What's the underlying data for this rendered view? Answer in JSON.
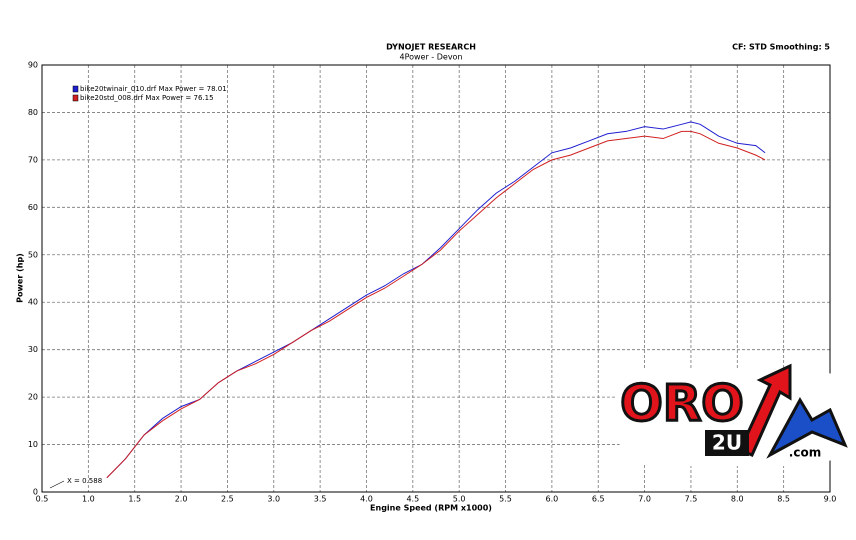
{
  "chart_data": {
    "type": "line",
    "title": "DYNOJET RESEARCH",
    "subtitle": "4Power - Devon",
    "settings": "CF: STD  Smoothing: 5",
    "xlabel": "Engine Speed (RPM x1000)",
    "ylabel": "Power (hp)",
    "annotation": "X = 0.588",
    "x": [
      1.2,
      1.4,
      1.6,
      1.8,
      2.0,
      2.2,
      2.4,
      2.6,
      2.8,
      3.0,
      3.2,
      3.4,
      3.6,
      3.8,
      4.0,
      4.2,
      4.4,
      4.6,
      4.8,
      5.0,
      5.2,
      5.4,
      5.6,
      5.8,
      6.0,
      6.2,
      6.4,
      6.6,
      6.8,
      7.0,
      7.2,
      7.4,
      7.5,
      7.6,
      7.8,
      8.0,
      8.2,
      8.3
    ],
    "series": [
      {
        "name": "bike20twinair_010.drf Max Power = 78.01",
        "color": "#1f1fd0",
        "values": [
          3,
          7,
          12,
          15.5,
          18,
          19.5,
          23,
          25.5,
          27.5,
          29.5,
          31.5,
          34,
          36.5,
          39,
          41.5,
          43.5,
          46,
          48,
          51.5,
          55.5,
          59.5,
          63,
          65.5,
          68.5,
          71.5,
          72.5,
          74,
          75.5,
          76,
          77,
          76.5,
          77.5,
          78,
          77.5,
          75,
          73.5,
          73,
          71.5
        ]
      },
      {
        "name": "bike20std_008.drf Max Power = 76.15",
        "color": "#d02020",
        "values": [
          3,
          7,
          12,
          15,
          17.5,
          19.5,
          23,
          25.5,
          27,
          29,
          31.5,
          34,
          36,
          38.5,
          41,
          43,
          45.5,
          48,
          51,
          55,
          58.5,
          62,
          65,
          68,
          70,
          71,
          72.5,
          74,
          74.5,
          75,
          74.5,
          76,
          76,
          75.5,
          73.5,
          72.5,
          71,
          70
        ]
      }
    ],
    "xlim": [
      0.5,
      9.0
    ],
    "xticks": [
      0.5,
      {
        "value": 1,
        "label": "1.0"
      },
      1.5,
      {
        "value": 2,
        "label": "2.0"
      },
      2.5,
      {
        "value": 3,
        "label": "3.0"
      },
      3.5,
      {
        "value": 4,
        "label": "4.0"
      },
      4.5,
      {
        "value": 5,
        "label": "5.0"
      },
      5.5,
      {
        "value": 6,
        "label": "6.0"
      },
      6.5,
      {
        "value": 7,
        "label": "7.0"
      },
      7.5,
      {
        "value": 8,
        "label": "8.0"
      },
      8.5,
      {
        "value": 9,
        "label": "9.0"
      }
    ],
    "ylim": [
      0,
      90
    ],
    "yticks": [
      0,
      10,
      20,
      30,
      40,
      50,
      60,
      70,
      80,
      90
    ],
    "grid": true,
    "logo": {
      "text": "ORO",
      "sub": "2U",
      "domain": ".com"
    }
  }
}
